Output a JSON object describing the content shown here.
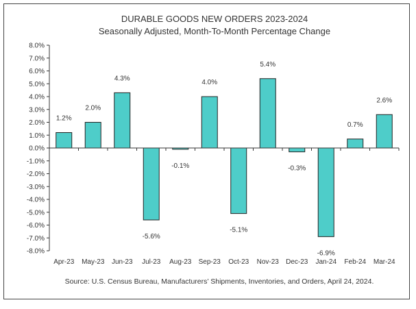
{
  "chart_data": {
    "type": "bar",
    "title": "DURABLE GOODS NEW ORDERS 2023-2024",
    "subtitle": "Seasonally Adjusted,  Month-To-Month Percentage Change",
    "categories": [
      "Apr-23",
      "May-23",
      "Jun-23",
      "Jul-23",
      "Aug-23",
      "Sep-23",
      "Oct-23",
      "Nov-23",
      "Dec-23",
      "Jan-24",
      "Feb-24",
      "Mar-24"
    ],
    "values": [
      1.2,
      2.0,
      4.3,
      -5.6,
      -0.1,
      4.0,
      -5.1,
      5.4,
      -0.3,
      -6.9,
      0.7,
      2.6
    ],
    "data_labels": [
      "1.2%",
      "2.0%",
      "4.3%",
      "-5.6%",
      "-0.1%",
      "4.0%",
      "-5.1%",
      "5.4%",
      "-0.3%",
      "-6.9%",
      "0.7%",
      "2.6%"
    ],
    "ylim": [
      -8,
      8
    ],
    "yticks": [
      "8.0%",
      "7.0%",
      "6.0%",
      "5.0%",
      "4.0%",
      "3.0%",
      "2.0%",
      "1.0%",
      "0.0%",
      "-1.0%",
      "-2.0%",
      "-3.0%",
      "-4.0%",
      "-5.0%",
      "-6.0%",
      "-7.0%",
      "-8.0%"
    ],
    "ytick_values": [
      8,
      7,
      6,
      5,
      4,
      3,
      2,
      1,
      0,
      -1,
      -2,
      -3,
      -4,
      -5,
      -6,
      -7,
      -8
    ],
    "xlabel": "",
    "ylabel": "",
    "grid": false,
    "legend": "none",
    "bar_color": "#4ECDC9",
    "source": "Source: U.S. Census Bureau, Manufacturers’ Shipments, Inventories, and Orders, April 24, 2024."
  }
}
